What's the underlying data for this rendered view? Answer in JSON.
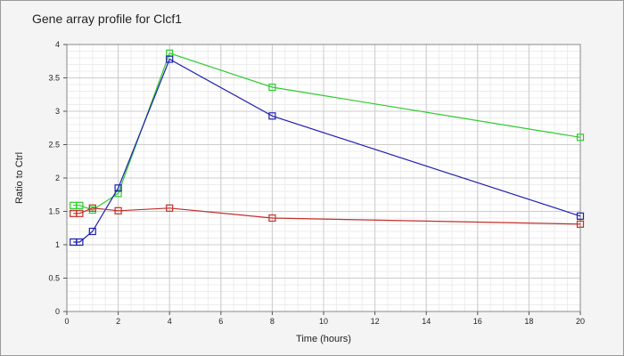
{
  "chart_data": {
    "type": "line",
    "title": "Gene array profile for Clcf1",
    "xlabel": "Time (hours)",
    "ylabel": "Ratio to Ctrl",
    "xlim": [
      0,
      20
    ],
    "ylim": [
      0,
      4
    ],
    "xticks": [
      "0",
      "2",
      "4",
      "6",
      "8",
      "10",
      "12",
      "14",
      "16",
      "18",
      "20"
    ],
    "yticks": [
      "0",
      "0.5",
      "1",
      "1.5",
      "2",
      "2.5",
      "3",
      "3.5",
      "4"
    ],
    "grid": true,
    "series": [
      {
        "color": "#2ecc2e",
        "x": [
          0.25,
          0.5,
          1,
          2,
          4,
          8,
          20
        ],
        "y": [
          1.59,
          1.59,
          1.52,
          1.77,
          3.87,
          3.36,
          2.61
        ]
      },
      {
        "color": "#1f1fb0",
        "x": [
          0.25,
          0.5,
          1,
          2,
          4,
          8,
          20
        ],
        "y": [
          1.04,
          1.04,
          1.2,
          1.85,
          3.78,
          2.93,
          1.43
        ]
      },
      {
        "color": "#c0302a",
        "x": [
          0.25,
          0.5,
          1,
          2,
          4,
          8,
          20
        ],
        "y": [
          1.47,
          1.47,
          1.55,
          1.51,
          1.55,
          1.4,
          1.31
        ]
      }
    ]
  }
}
